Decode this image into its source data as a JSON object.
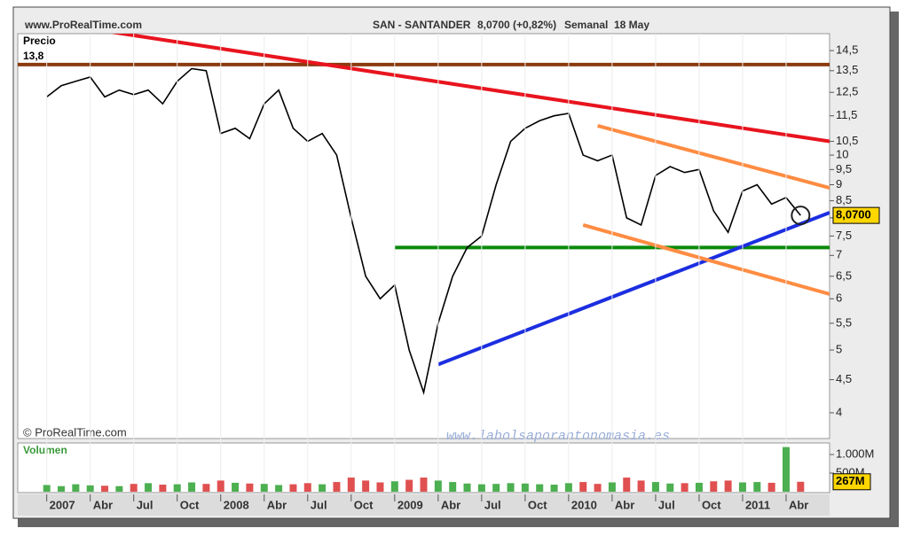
{
  "chart_data": [
    {
      "type": "line",
      "log_scale": true,
      "source": "www.ProRealTime.com",
      "title": "SAN - SANTANDER",
      "subtitle": "8,0700 (+0,82%)",
      "period": "Semanal",
      "date": "18 May",
      "y_label": "Precio",
      "copyright": "© ProRealTime.com",
      "watermark": "www.labolsaporantonomasia.es",
      "x": [
        "2007-01",
        "2007-02",
        "2007-03",
        "2007-04",
        "2007-05",
        "2007-06",
        "2007-07",
        "2007-08",
        "2007-09",
        "2007-10",
        "2007-11",
        "2007-12",
        "2008-01",
        "2008-02",
        "2008-03",
        "2008-04",
        "2008-05",
        "2008-06",
        "2008-07",
        "2008-08",
        "2008-09",
        "2008-10",
        "2008-11",
        "2008-12",
        "2009-01",
        "2009-02",
        "2009-03",
        "2009-04",
        "2009-05",
        "2009-06",
        "2009-07",
        "2009-08",
        "2009-09",
        "2009-10",
        "2009-11",
        "2009-12",
        "2010-01",
        "2010-02",
        "2010-03",
        "2010-04",
        "2010-05",
        "2010-06",
        "2010-07",
        "2010-08",
        "2010-09",
        "2010-10",
        "2010-11",
        "2010-12",
        "2011-01",
        "2011-02",
        "2011-03",
        "2011-04",
        "2011-05"
      ],
      "values": [
        12.3,
        12.8,
        13.0,
        13.2,
        12.3,
        12.6,
        12.4,
        12.6,
        12.0,
        13.0,
        13.6,
        13.5,
        10.8,
        11.0,
        10.6,
        12.0,
        12.6,
        11.0,
        10.5,
        10.8,
        10.0,
        8.0,
        6.5,
        6.0,
        6.3,
        5.0,
        4.3,
        5.5,
        6.5,
        7.2,
        7.5,
        9.0,
        10.5,
        11.0,
        11.3,
        11.5,
        11.6,
        10.0,
        9.8,
        10.0,
        8.0,
        7.8,
        9.3,
        9.6,
        9.4,
        9.5,
        8.2,
        7.6,
        8.8,
        9.0,
        8.4,
        8.6,
        8.07
      ],
      "color": "#000000",
      "last_price": {
        "value": 8.07,
        "label": "8,0700"
      },
      "levels": [
        {
          "value": 13.8,
          "label": "13,8",
          "color": "#8b3a0f"
        }
      ],
      "trendlines": [
        {
          "color": "#e8141e",
          "points": [
            [
              "2006-11",
              16.3
            ],
            [
              "2011-07",
              10.5
            ]
          ]
        },
        {
          "color": "#0a8a0a",
          "points": [
            [
              "2009-01",
              7.2
            ],
            [
              "2011-07",
              7.2
            ]
          ]
        },
        {
          "color": "#1c2ee0",
          "points": [
            [
              "2009-04",
              4.75
            ],
            [
              "2011-07",
              8.15
            ]
          ]
        },
        {
          "color": "#ff8c42",
          "points": [
            [
              "2010-03",
              11.1
            ],
            [
              "2011-07",
              8.9
            ]
          ]
        },
        {
          "color": "#ff8c42",
          "points": [
            [
              "2010-02",
              7.8
            ],
            [
              "2011-07",
              6.1
            ]
          ]
        }
      ],
      "xlim": [
        "2006-11",
        "2011-07"
      ],
      "xticks": [
        {
          "value": "2007-01",
          "label": "2007"
        },
        {
          "value": "2007-04",
          "label": "Abr"
        },
        {
          "value": "2007-07",
          "label": "Jul"
        },
        {
          "value": "2007-10",
          "label": "Oct"
        },
        {
          "value": "2008-01",
          "label": "2008"
        },
        {
          "value": "2008-04",
          "label": "Abr"
        },
        {
          "value": "2008-07",
          "label": "Jul"
        },
        {
          "value": "2008-10",
          "label": "Oct"
        },
        {
          "value": "2009-01",
          "label": "2009"
        },
        {
          "value": "2009-04",
          "label": "Abr"
        },
        {
          "value": "2009-07",
          "label": "Jul"
        },
        {
          "value": "2009-10",
          "label": "Oct"
        },
        {
          "value": "2010-01",
          "label": "2010"
        },
        {
          "value": "2010-04",
          "label": "Abr"
        },
        {
          "value": "2010-07",
          "label": "Jul"
        },
        {
          "value": "2010-10",
          "label": "Oct"
        },
        {
          "value": "2011-01",
          "label": "2011"
        },
        {
          "value": "2011-04",
          "label": "Abr"
        }
      ],
      "ylim": [
        3.65,
        15.4
      ],
      "yticks": [
        4,
        {
          "value": 4.5,
          "label": "4,5"
        },
        5,
        {
          "value": 5.5,
          "label": "5,5"
        },
        6,
        {
          "value": 6.5,
          "label": "6,5"
        },
        7,
        {
          "value": 7.5,
          "label": "7,5"
        },
        8,
        {
          "value": 8.5,
          "label": "8,5"
        },
        9,
        {
          "value": 9.5,
          "label": "9,5"
        },
        10,
        {
          "value": 10.5,
          "label": "10,5"
        },
        {
          "value": 11.5,
          "label": "11,5"
        },
        {
          "value": 12.5,
          "label": "12,5"
        },
        {
          "value": 13.5,
          "label": "13,5"
        },
        {
          "value": 14.5,
          "label": "14,5"
        }
      ]
    },
    {
      "type": "bar",
      "title": "Volumen",
      "values": [
        180,
        150,
        200,
        170,
        160,
        150,
        210,
        230,
        190,
        200,
        250,
        210,
        300,
        240,
        220,
        210,
        180,
        200,
        230,
        200,
        260,
        380,
        300,
        250,
        280,
        320,
        380,
        300,
        260,
        220,
        200,
        210,
        230,
        220,
        200,
        190,
        230,
        260,
        210,
        250,
        380,
        300,
        260,
        220,
        230,
        240,
        280,
        300,
        250,
        260,
        240,
        1200,
        267
      ],
      "up_color": "#4caf50",
      "down_color": "#e05050",
      "last_value": {
        "value": 267,
        "label": "267M"
      },
      "ylim": [
        0,
        1310
      ],
      "yticks": [
        {
          "value": 500,
          "label": "500M"
        },
        {
          "value": 1000,
          "label": "1.000M"
        }
      ]
    }
  ]
}
